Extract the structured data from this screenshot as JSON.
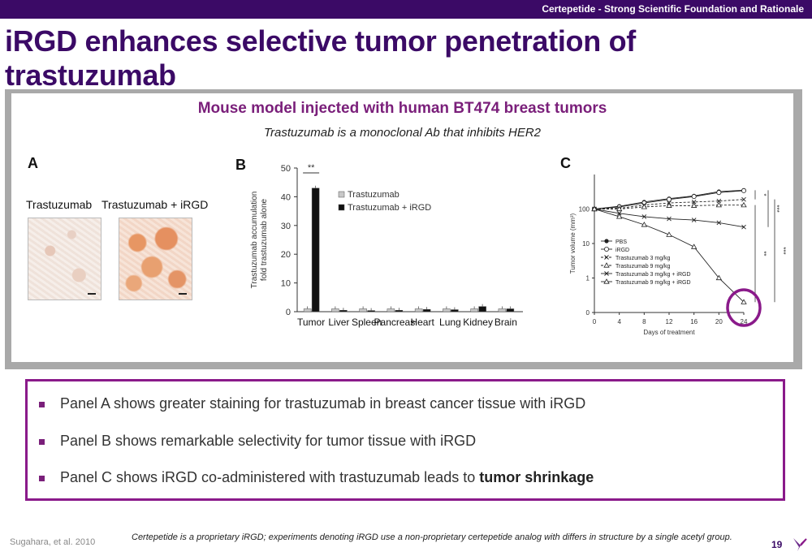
{
  "header": {
    "section": "Certepetide - Strong Scientific Foundation and Rationale"
  },
  "title": "iRGD enhances selective tumor penetration of trastuzumab",
  "figure": {
    "title": "Mouse model injected with human BT474 breast tumors",
    "subtitle": "Trastuzumab is a monoclonal Ab that inhibits HER2",
    "panel_a": {
      "letter": "A",
      "label_left": "Trastuzumab",
      "label_right": "Trastuzumab + iRGD"
    },
    "panel_b": {
      "letter": "B"
    },
    "panel_c": {
      "letter": "C"
    }
  },
  "chart_data": [
    {
      "type": "bar",
      "ylabel": "Trastuzumab accumulation\nfold trastuzumab alone",
      "ylim": [
        0,
        50
      ],
      "yticks": [
        0,
        10,
        20,
        30,
        40,
        50
      ],
      "categories": [
        "Tumor",
        "Liver",
        "Spleen",
        "Pancreas",
        "Heart",
        "Lung",
        "Kidney",
        "Brain"
      ],
      "series": [
        {
          "name": "Trastuzumab",
          "color": "#c8c8c8",
          "values": [
            1,
            1,
            1,
            1,
            1,
            1,
            1,
            1
          ]
        },
        {
          "name": "Trastuzumab + iRGD",
          "color": "#111111",
          "values": [
            43,
            0.5,
            0.4,
            0.5,
            0.8,
            0.7,
            1.8,
            1.0
          ]
        }
      ],
      "annotations": [
        "**"
      ]
    },
    {
      "type": "line",
      "xlabel": "Days of treatment",
      "ylabel": "Tumor volume (mm³)",
      "x": [
        0,
        4,
        8,
        12,
        16,
        20,
        24
      ],
      "xticks": [
        "0",
        "4",
        "8",
        "12",
        "16",
        "20",
        "24"
      ],
      "yticks": [
        "0",
        "1",
        "10",
        "100"
      ],
      "yscale": "log",
      "series": [
        {
          "name": "PBS",
          "values": [
            100,
            120,
            160,
            200,
            240,
            320,
            350
          ]
        },
        {
          "name": "iRGD",
          "values": [
            100,
            115,
            150,
            190,
            230,
            300,
            340
          ]
        },
        {
          "name": "Trastuzumab 3 mg/kg",
          "values": [
            100,
            105,
            130,
            150,
            160,
            170,
            190
          ]
        },
        {
          "name": "Trastuzumab 9 mg/kg",
          "values": [
            100,
            100,
            115,
            125,
            125,
            130,
            130
          ]
        },
        {
          "name": "Trastuzumab 3 mg/kg + iRGD",
          "values": [
            100,
            75,
            60,
            52,
            48,
            40,
            30
          ]
        },
        {
          "name": "Trastuzumab 9 mg/kg + iRGD",
          "values": [
            100,
            60,
            35,
            18,
            8,
            1,
            0.2
          ]
        }
      ],
      "annotations": [
        "*",
        "***",
        "**",
        "***"
      ]
    }
  ],
  "bullets": [
    {
      "text": "Panel A shows greater staining for trastuzumab in breast cancer tissue with iRGD",
      "emphasis": ""
    },
    {
      "text": "Panel B shows remarkable selectivity for tumor tissue with iRGD",
      "emphasis": ""
    },
    {
      "text": "Panel C shows iRGD co-administered with trastuzumab leads to ",
      "emphasis": "tumor shrinkage"
    }
  ],
  "footer": {
    "citation": "Sugahara, et al. 2010",
    "footnote": "Certepetide is a proprietary iRGD; experiments denoting iRGD use a non-proprietary certepetide analog with differs in structure by a single acetyl group.",
    "page_number": "19"
  },
  "colors": {
    "brand": "#3b0a66",
    "accent": "#7a1f7a",
    "highlight_circle": "#8a1a8a"
  }
}
